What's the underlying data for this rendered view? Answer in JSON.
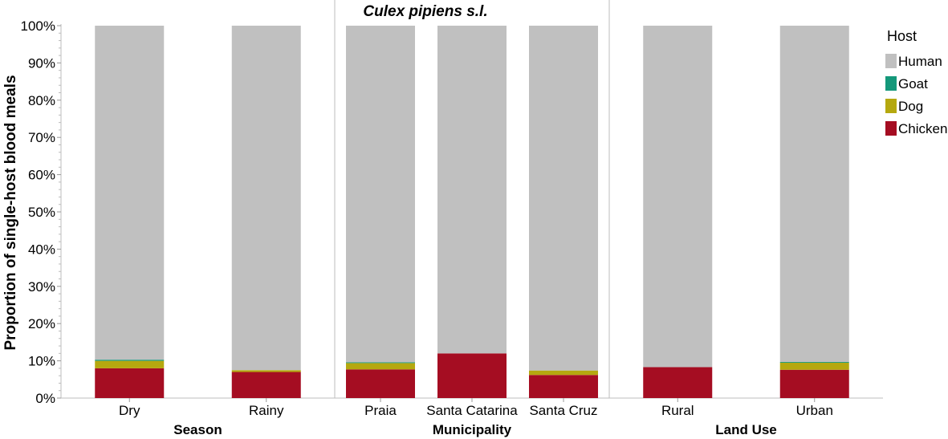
{
  "chart_data": {
    "type": "bar",
    "stacked": true,
    "title": "Culex pipiens s.l.",
    "ylabel": "Proportion of single-host blood meals",
    "ylim": [
      0,
      100
    ],
    "yticks": [
      "0%",
      "10%",
      "20%",
      "30%",
      "40%",
      "50%",
      "60%",
      "70%",
      "80%",
      "90%",
      "100%"
    ],
    "groups": [
      {
        "label": "Season",
        "categories": [
          "Dry",
          "Rainy"
        ]
      },
      {
        "label": "Municipality",
        "categories": [
          "Praia",
          "Santa Catarina",
          "Santa Cruz"
        ]
      },
      {
        "label": "Land Use",
        "categories": [
          "Rural",
          "Urban"
        ]
      }
    ],
    "categories": [
      "Dry",
      "Rainy",
      "Praia",
      "Santa Catarina",
      "Santa Cruz",
      "Rural",
      "Urban"
    ],
    "series": [
      {
        "name": "Chicken",
        "color": "#a50d22",
        "values": [
          8.0,
          7.0,
          7.7,
          12.0,
          6.2,
          8.3,
          7.6
        ]
      },
      {
        "name": "Dog",
        "color": "#b5a80f",
        "values": [
          2.0,
          0.5,
          1.7,
          0.0,
          1.2,
          0.0,
          1.9
        ]
      },
      {
        "name": "Goat",
        "color": "#14987a",
        "values": [
          0.3,
          0.0,
          0.2,
          0.0,
          0.0,
          0.0,
          0.2
        ]
      },
      {
        "name": "Human",
        "color": "#c0c0c0",
        "values": [
          89.7,
          92.5,
          90.4,
          88.0,
          92.6,
          91.7,
          90.3
        ]
      }
    ],
    "legend": {
      "title": "Host",
      "entries": [
        "Human",
        "Goat",
        "Dog",
        "Chicken"
      ],
      "position": "right"
    },
    "grid": false
  }
}
